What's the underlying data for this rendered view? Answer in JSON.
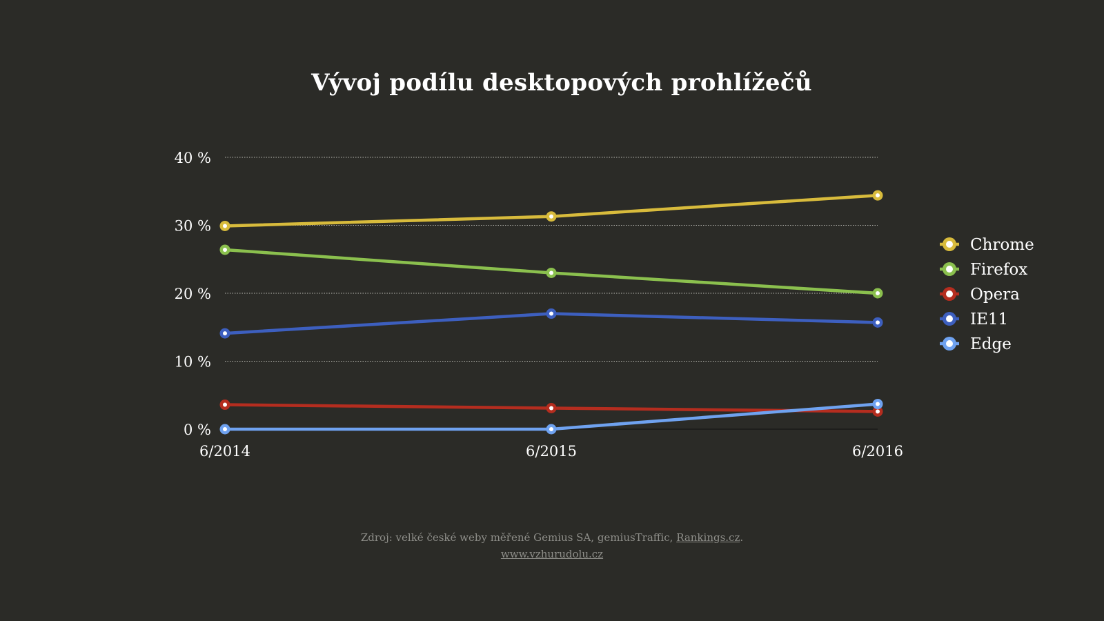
{
  "chart_data": {
    "type": "line",
    "title": "Vývoj podílu desktopových prohlížečů",
    "x": [
      "6/2014",
      "6/2015",
      "6/2016"
    ],
    "ylim": [
      0,
      40
    ],
    "yticks": [
      "0 %",
      "10 %",
      "20 %",
      "30 %",
      "40 %"
    ],
    "ytick_values": [
      0,
      10,
      20,
      30,
      40
    ],
    "grid": true,
    "legend_position": "right",
    "series": [
      {
        "name": "Chrome",
        "color": "#d8bb3c",
        "values": [
          29.9,
          31.3,
          34.4
        ]
      },
      {
        "name": "Firefox",
        "color": "#8bc04e",
        "values": [
          26.4,
          23.0,
          20.0
        ]
      },
      {
        "name": "Opera",
        "color": "#b52d1f",
        "values": [
          3.6,
          3.1,
          2.6
        ]
      },
      {
        "name": "IE11",
        "color": "#3d5fbf",
        "values": [
          14.1,
          17.0,
          15.7
        ]
      },
      {
        "name": "Edge",
        "color": "#6fa2f0",
        "values": [
          0.0,
          0.0,
          3.7
        ]
      }
    ]
  },
  "footer": {
    "source_text": "Zdroj: velké české weby měřené Gemius SA, gemiusTraffic, ",
    "source_link": "Rankings.cz",
    "source_end": ".",
    "site_link": "www.vzhurudolu.cz"
  }
}
